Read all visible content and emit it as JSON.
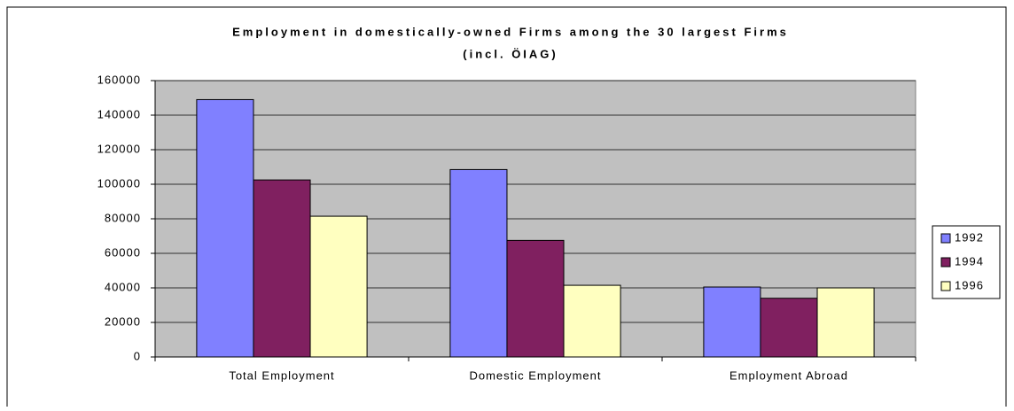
{
  "chart_data": {
    "type": "bar",
    "title": "Employment in domestically-owned Firms among the 30 largest Firms",
    "subtitle": "(incl. ÖIAG)",
    "categories": [
      "Total Employment",
      "Domestic Employment",
      "Employment Abroad"
    ],
    "series": [
      {
        "name": "1992",
        "color": "#8080ff",
        "values": [
          149000,
          108500,
          40500
        ]
      },
      {
        "name": "1994",
        "color": "#802060",
        "values": [
          102500,
          67500,
          34000
        ]
      },
      {
        "name": "1996",
        "color": "#ffffc0",
        "values": [
          81500,
          41500,
          40000
        ]
      }
    ],
    "ylim": [
      0,
      160000
    ],
    "yticks": [
      0,
      20000,
      40000,
      60000,
      80000,
      100000,
      120000,
      140000,
      160000
    ],
    "grid": true,
    "legend": "right"
  }
}
